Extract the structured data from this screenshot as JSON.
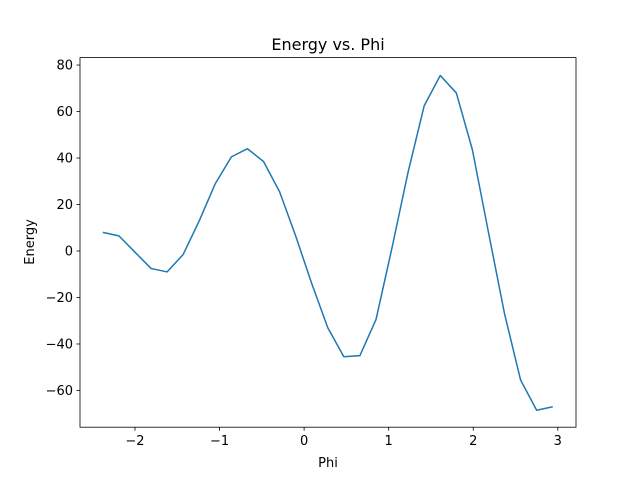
{
  "chart_data": {
    "type": "line",
    "title": "Energy vs. Phi",
    "xlabel": "Phi",
    "ylabel": "Energy",
    "x": [
      -2.38,
      -2.19,
      -2.0,
      -1.81,
      -1.62,
      -1.43,
      -1.24,
      -1.05,
      -0.86,
      -0.67,
      -0.48,
      -0.29,
      -0.1,
      0.09,
      0.28,
      0.47,
      0.66,
      0.85,
      1.04,
      1.23,
      1.42,
      1.61,
      1.8,
      1.99,
      2.18,
      2.37,
      2.56,
      2.75,
      2.94
    ],
    "series": [
      {
        "name": "Energy",
        "color": "#1f77b4",
        "values": [
          8,
          6.5,
          -0.5,
          -7.5,
          -9,
          -1.5,
          13,
          29,
          40.5,
          44,
          38.5,
          25.5,
          6.5,
          -14,
          -33,
          -45.5,
          -45,
          -29.5,
          1.5,
          34,
          62.5,
          75.5,
          68,
          43.5,
          8,
          -27,
          -55.5,
          -68.5,
          -67
        ]
      }
    ],
    "xlim": [
      -2.65,
      3.215
    ],
    "ylim": [
      -75.8,
      83.2
    ],
    "xticks": [
      {
        "value": -2,
        "label": "−2"
      },
      {
        "value": -1,
        "label": "−1"
      },
      0,
      1,
      2,
      3
    ],
    "yticks": [
      {
        "value": -60,
        "label": "−60"
      },
      {
        "value": -40,
        "label": "−40"
      },
      {
        "value": -20,
        "label": "−20"
      },
      0,
      20,
      40,
      60,
      80
    ]
  }
}
